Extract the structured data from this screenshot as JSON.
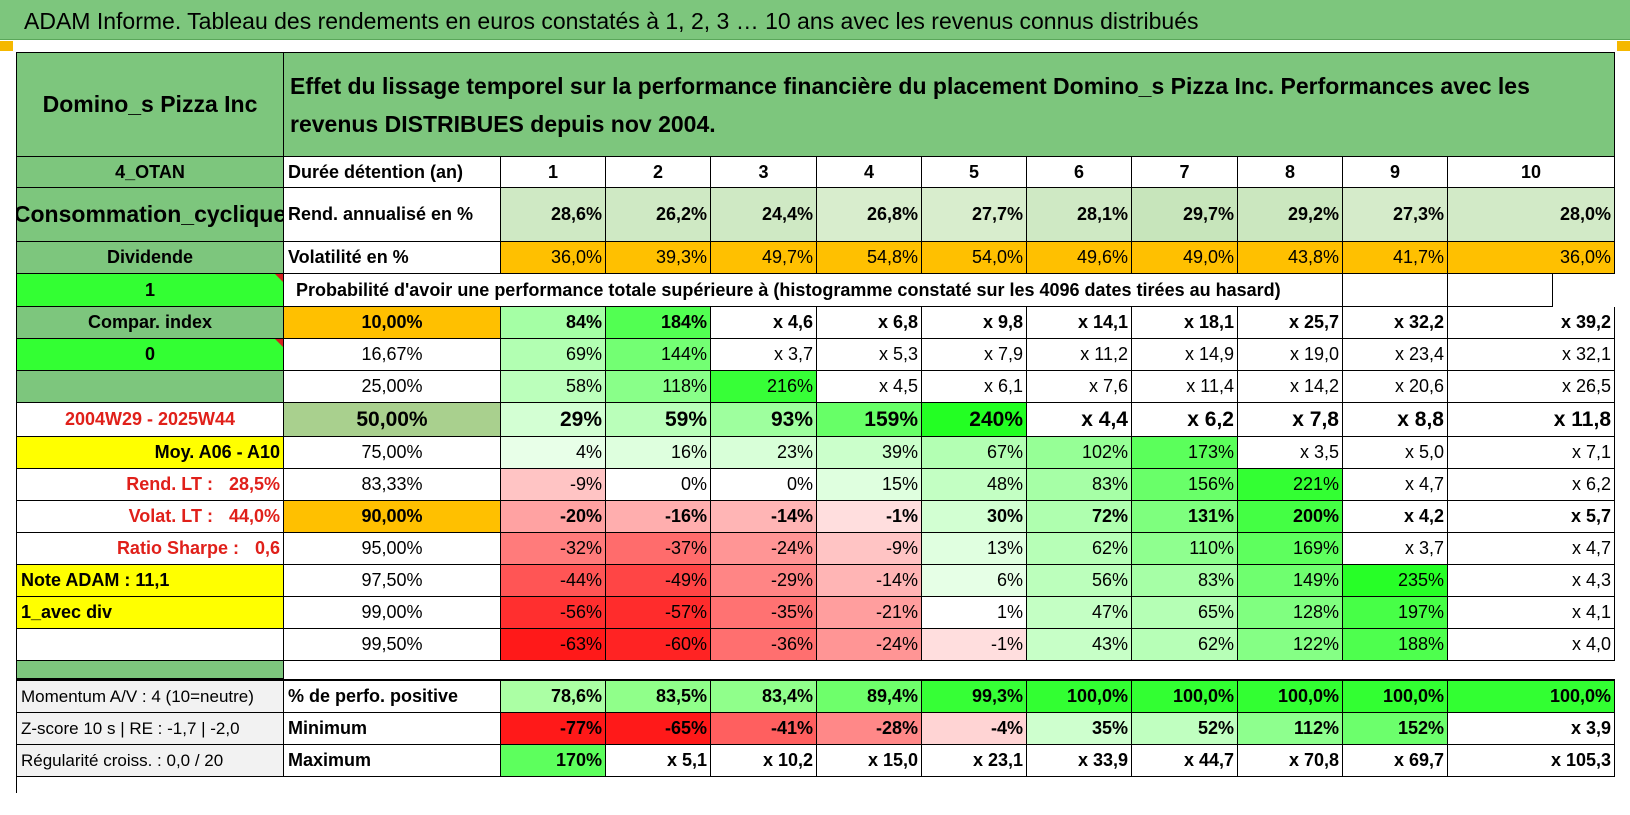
{
  "title": "ADAM Informe. Tableau des rendements en euros constatés à 1, 2, 3 … 10 ans avec les revenus connus distribués",
  "colors": {
    "header_green": "#7dc67d",
    "orange": "#ffc000",
    "yellow": "#ffff00",
    "bright_green": "#33ff33",
    "red_text": "#e0201a"
  },
  "company": "Domino_s Pizza Inc",
  "description": "Effet du lissage temporel sur la performance financière du placement Domino_s Pizza Inc. Performances avec les revenus DISTRIBUES depuis nov 2004.",
  "side": {
    "category": "4_OTAN",
    "sector": "Consommation_cyclique",
    "type": "Dividende",
    "flag1": "1",
    "compar_index": "Compar. index",
    "flag0": "0",
    "period": "2004W29 - 2025W44",
    "moy": "Moy. A06 - A10",
    "rend_lt_label": "Rend. LT :",
    "rend_lt_value": "28,5%",
    "volat_lt_label": "Volat. LT :",
    "volat_lt_value": "44,0%",
    "sharpe_label": "Ratio Sharpe :",
    "sharpe_value": "0,6",
    "note": "Note ADAM : 11,1",
    "avec_div": "1_avec div"
  },
  "row_labels": {
    "duree": "Durée détention (an)",
    "rend": "Rend. annualisé en %",
    "vol": "Volatilité en %",
    "proba": "Probabilité d'avoir une performance totale supérieure à (histogramme constaté sur les 4096 dates tirées au hasard)"
  },
  "years": [
    "1",
    "2",
    "3",
    "4",
    "5",
    "6",
    "7",
    "8",
    "9",
    "10"
  ],
  "rend": [
    "28,6%",
    "26,2%",
    "24,4%",
    "26,8%",
    "27,7%",
    "28,1%",
    "29,7%",
    "29,2%",
    "27,3%",
    "28,0%"
  ],
  "vol": [
    "36,0%",
    "39,3%",
    "49,7%",
    "54,8%",
    "54,0%",
    "49,6%",
    "49,0%",
    "43,8%",
    "41,7%",
    "36,0%"
  ],
  "quantiles": [
    {
      "p": "10,00%",
      "v": [
        "84%",
        "184%",
        "x 4,6",
        "x 6,8",
        "x 9,8",
        "x 14,1",
        "x 18,1",
        "x 25,7",
        "x 32,2",
        "x 39,2"
      ]
    },
    {
      "p": "16,67%",
      "v": [
        "69%",
        "144%",
        "x 3,7",
        "x 5,3",
        "x 7,9",
        "x 11,2",
        "x 14,9",
        "x 19,0",
        "x 23,4",
        "x 32,1"
      ]
    },
    {
      "p": "25,00%",
      "v": [
        "58%",
        "118%",
        "216%",
        "x 4,5",
        "x 6,1",
        "x 7,6",
        "x 11,4",
        "x 14,2",
        "x 20,6",
        "x 26,5"
      ]
    },
    {
      "p": "50,00%",
      "v": [
        "29%",
        "59%",
        "93%",
        "159%",
        "240%",
        "x 4,4",
        "x 6,2",
        "x 7,8",
        "x 8,8",
        "x 11,8"
      ]
    },
    {
      "p": "75,00%",
      "v": [
        "4%",
        "16%",
        "23%",
        "39%",
        "67%",
        "102%",
        "173%",
        "x 3,5",
        "x 5,0",
        "x 7,1"
      ]
    },
    {
      "p": "83,33%",
      "v": [
        "-9%",
        "0%",
        "0%",
        "15%",
        "48%",
        "83%",
        "156%",
        "221%",
        "x 4,7",
        "x 6,2"
      ]
    },
    {
      "p": "90,00%",
      "v": [
        "-20%",
        "-16%",
        "-14%",
        "-1%",
        "30%",
        "72%",
        "131%",
        "200%",
        "x 4,2",
        "x 5,7"
      ]
    },
    {
      "p": "95,00%",
      "v": [
        "-32%",
        "-37%",
        "-24%",
        "-9%",
        "13%",
        "62%",
        "110%",
        "169%",
        "x 3,7",
        "x 4,7"
      ]
    },
    {
      "p": "97,50%",
      "v": [
        "-44%",
        "-49%",
        "-29%",
        "-14%",
        "6%",
        "56%",
        "83%",
        "149%",
        "235%",
        "x 4,3"
      ]
    },
    {
      "p": "99,00%",
      "v": [
        "-56%",
        "-57%",
        "-35%",
        "-21%",
        "1%",
        "47%",
        "65%",
        "128%",
        "197%",
        "x 4,1"
      ]
    },
    {
      "p": "99,50%",
      "v": [
        "-63%",
        "-60%",
        "-36%",
        "-24%",
        "-1%",
        "43%",
        "62%",
        "122%",
        "188%",
        "x 4,0"
      ]
    }
  ],
  "bottom": {
    "momentum": "Momentum A/V : 4 (10=neutre)",
    "zscore": "Z-score 10 s | RE : -1,7 | -2,0",
    "regularite": "Régularité croiss. : 0,0 / 20",
    "pct_label": "% de perfo. positive",
    "min_label": "Minimum",
    "max_label": "Maximum",
    "pct": [
      "78,6%",
      "83,5%",
      "83,4%",
      "89,4%",
      "99,3%",
      "100,0%",
      "100,0%",
      "100,0%",
      "100,0%",
      "100,0%"
    ],
    "min": [
      "-77%",
      "-65%",
      "-41%",
      "-28%",
      "-4%",
      "35%",
      "52%",
      "112%",
      "152%",
      "x 3,9"
    ],
    "max": [
      "170%",
      "x 5,1",
      "x 10,2",
      "x 15,0",
      "x 23,1",
      "x 33,9",
      "x 44,7",
      "x 70,8",
      "x 69,7",
      "x 105,3"
    ]
  }
}
